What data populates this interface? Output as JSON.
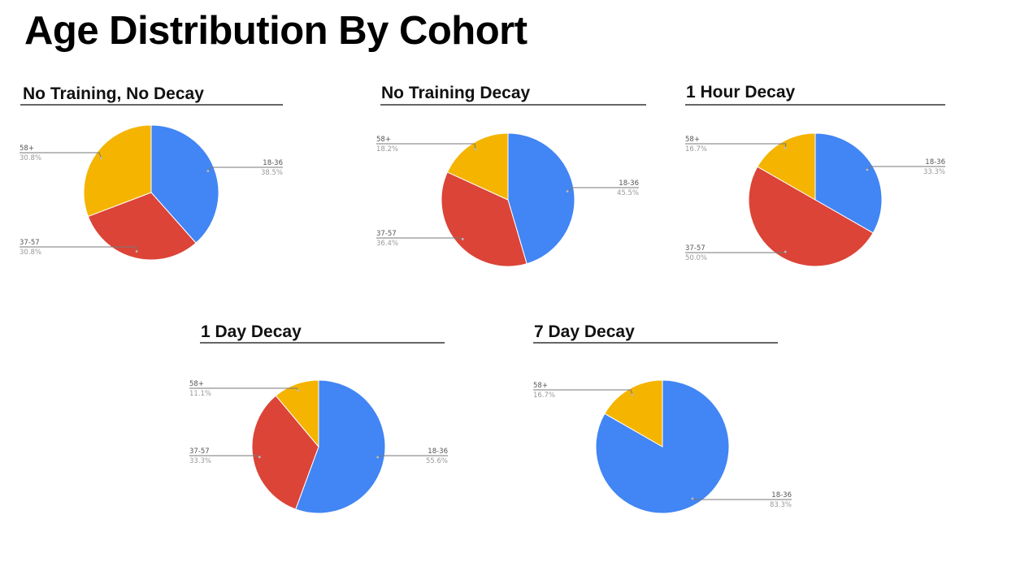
{
  "page": {
    "title": "Age Distribution By Cohort"
  },
  "colors": {
    "18-36": "#4285F4",
    "37-57": "#DB4437",
    "58+": "#F4B400"
  },
  "chart_data": [
    {
      "type": "pie",
      "title": "No Training, No Decay",
      "slices": [
        {
          "label": "18-36",
          "value": 38.5,
          "display": "38.5%"
        },
        {
          "label": "37-57",
          "value": 30.8,
          "display": "30.8%"
        },
        {
          "label": "58+",
          "value": 30.8,
          "display": "30.8%"
        }
      ]
    },
    {
      "type": "pie",
      "title": "No Training Decay",
      "slices": [
        {
          "label": "18-36",
          "value": 45.5,
          "display": "45.5%"
        },
        {
          "label": "37-57",
          "value": 36.4,
          "display": "36.4%"
        },
        {
          "label": "58+",
          "value": 18.2,
          "display": "18.2%"
        }
      ]
    },
    {
      "type": "pie",
      "title": "1 Hour Decay",
      "slices": [
        {
          "label": "18-36",
          "value": 33.3,
          "display": "33.3%"
        },
        {
          "label": "37-57",
          "value": 50.0,
          "display": "50.0%"
        },
        {
          "label": "58+",
          "value": 16.7,
          "display": "16.7%"
        }
      ]
    },
    {
      "type": "pie",
      "title": "1 Day Decay",
      "slices": [
        {
          "label": "18-36",
          "value": 55.6,
          "display": "55.6%"
        },
        {
          "label": "37-57",
          "value": 33.3,
          "display": "33.3%"
        },
        {
          "label": "58+",
          "value": 11.1,
          "display": "11.1%"
        }
      ]
    },
    {
      "type": "pie",
      "title": "7 Day Decay",
      "slices": [
        {
          "label": "18-36",
          "value": 83.3,
          "display": "83.3%"
        },
        {
          "label": "58+",
          "value": 16.7,
          "display": "16.7%"
        }
      ]
    }
  ]
}
